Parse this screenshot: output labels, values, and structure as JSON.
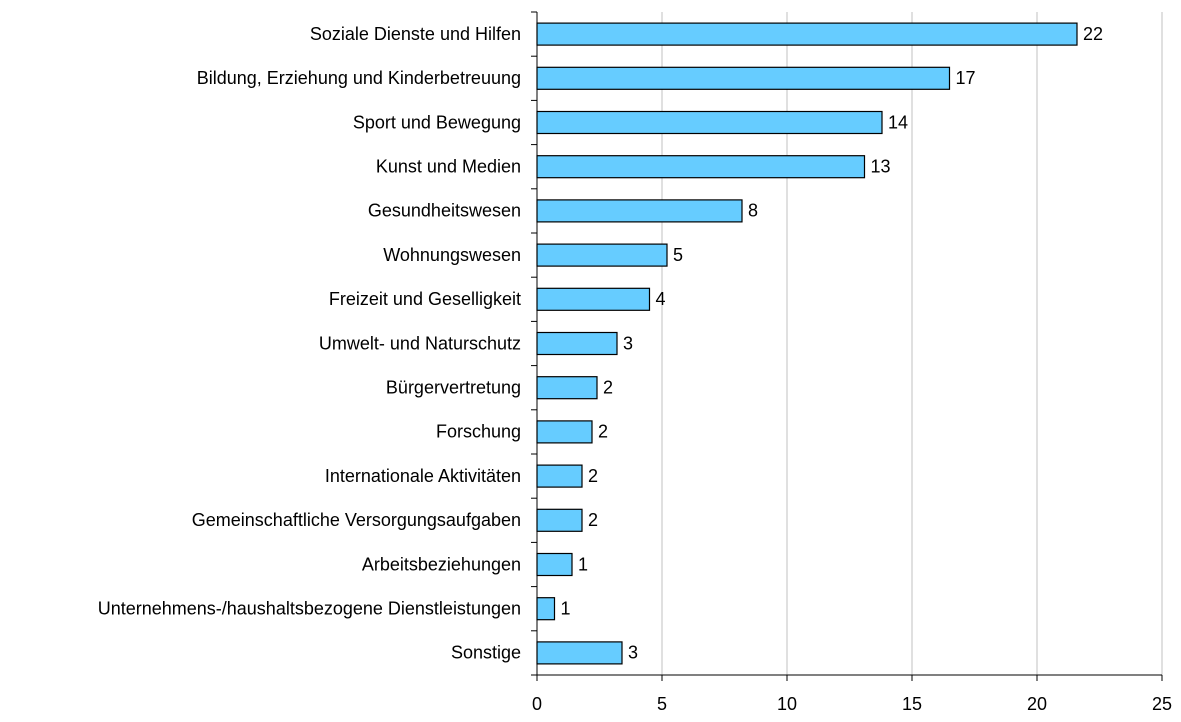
{
  "chart_data": {
    "type": "barh",
    "categories": [
      "Soziale Dienste und Hilfen",
      "Bildung, Erziehung und Kinderbetreuung",
      "Sport und Bewegung",
      "Kunst und Medien",
      "Gesundheitswesen",
      "Wohnungswesen",
      "Freizeit und Geselligkeit",
      "Umwelt- und Naturschutz",
      "Bürgervertretung",
      "Forschung",
      "Internationale Aktivitäten",
      "Gemeinschaftliche Versorgungsaufgaben",
      "Arbeitsbeziehungen",
      "Unternehmens-/haushaltsbezogene Dienstleistungen",
      "Sonstige"
    ],
    "values": [
      21.6,
      16.5,
      13.8,
      13.1,
      8.2,
      5.2,
      4.5,
      3.2,
      2.4,
      2.2,
      1.8,
      1.8,
      1.4,
      0.7,
      3.4
    ],
    "value_labels": [
      "22",
      "17",
      "14",
      "13",
      "8",
      "5",
      "4",
      "3",
      "2",
      "2",
      "2",
      "2",
      "1",
      "1",
      "3"
    ],
    "color": "#66ccff",
    "xlim": [
      0,
      25
    ],
    "xticks": [
      0,
      5,
      10,
      15,
      20,
      25
    ],
    "grid": true
  }
}
